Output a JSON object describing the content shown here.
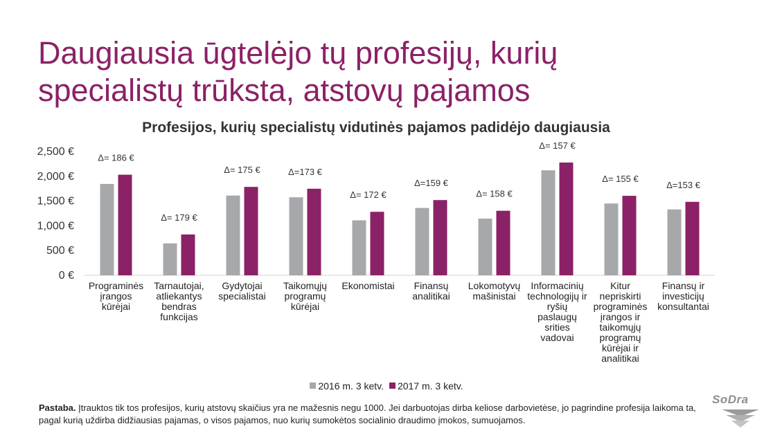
{
  "slide": {
    "title_line1": "Daugiausia ūgtelėjo tų profesijų, kurių",
    "title_line2": "specialistų trūksta, atstovų pajamos"
  },
  "chart_data": {
    "type": "bar",
    "title": "Profesijos, kurių specialistų vidutinės pajamos padidėjo daugiausia",
    "categories": [
      [
        "Programinės",
        "įrangos",
        "kūrėjai"
      ],
      [
        "Tarnautojai,",
        "atliekantys",
        "bendras",
        "funkcijas"
      ],
      [
        "Gydytojai",
        "specialistai"
      ],
      [
        "Taikomųjų",
        "programų",
        "kūrėjai"
      ],
      [
        "Ekonomistai"
      ],
      [
        "Finansų",
        "analitikai"
      ],
      [
        "Lokomotyvų",
        "mašinistai"
      ],
      [
        "Informacinių",
        "technologijų ir",
        "ryšių",
        "paslaugų",
        "srities",
        "vadovai"
      ],
      [
        "Kitur",
        "nepriskirti",
        "programinės",
        "įrangos ir",
        "taikomųjų",
        "programų",
        "kūrėjai ir",
        "analitikai"
      ],
      [
        "Finansų ir",
        "investicijų",
        "konsultantai"
      ]
    ],
    "series": [
      {
        "name": "2016 m. 3 ketv.",
        "color": "#a6a8ab",
        "values": [
          1845,
          645,
          1610,
          1575,
          1110,
          1360,
          1145,
          2120,
          1450,
          1330
        ]
      },
      {
        "name": "2017 m. 3 ketv.",
        "color": "#8b2166",
        "values": [
          2031,
          824,
          1785,
          1748,
          1282,
          1519,
          1303,
          2277,
          1605,
          1483
        ]
      }
    ],
    "annotations": [
      "Δ= 186 €",
      "Δ= 179 €",
      "Δ= 175 €",
      "Δ=173 €",
      "Δ= 172 €",
      "Δ=159 €",
      "Δ= 158 €",
      "Δ= 157 €",
      "Δ= 155 €",
      "Δ=153 €"
    ],
    "yticks": [
      "0 €",
      "500 €",
      "1,000 €",
      "1,500 €",
      "2,000 €",
      "2,500 €"
    ],
    "ylim": [
      0,
      2500
    ],
    "grid": false,
    "legend_position": "bottom"
  },
  "note": {
    "label": "Pastaba.",
    "text": " Įtrauktos tik tos profesijos, kurių atstovų skaičius yra ne mažesnis negu 1000. Jei darbuotojas dirba keliose darbovietėse, jo pagrindine profesija laikoma ta, pagal kurią uždirba didžiausias pajamas, o visos pajamos, nuo kurių sumokėtos socialinio draudimo įmokos, sumuojamos."
  },
  "logo": {
    "text": "SoDra"
  }
}
